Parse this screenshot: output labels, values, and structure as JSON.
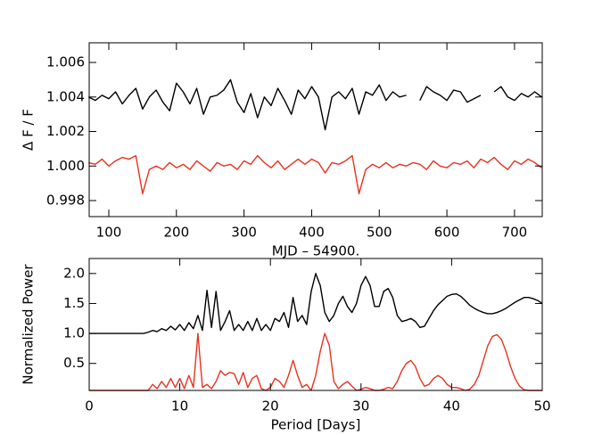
{
  "chart_data": [
    {
      "type": "line",
      "ylabel": "Δ F / F",
      "xlabel": "MJD – 54900.",
      "xlim": [
        71,
        741
      ],
      "ylim": [
        0.99707,
        1.00714
      ],
      "xticks": [
        100,
        200,
        300,
        400,
        500,
        600,
        700
      ],
      "yticks": [
        0.998,
        {
          "value": 1,
          "label": "1.000"
        },
        1.002,
        1.004,
        1.006
      ],
      "x": [
        70,
        80,
        90,
        100,
        110,
        120,
        130,
        140,
        150,
        160,
        170,
        180,
        190,
        200,
        210,
        220,
        230,
        240,
        250,
        260,
        270,
        280,
        290,
        300,
        310,
        320,
        330,
        340,
        350,
        360,
        370,
        380,
        390,
        400,
        410,
        420,
        430,
        440,
        450,
        460,
        470,
        480,
        490,
        500,
        510,
        520,
        530,
        540,
        550,
        560,
        570,
        580,
        590,
        600,
        610,
        620,
        630,
        640,
        650,
        660,
        670,
        680,
        690,
        700,
        710,
        720,
        730,
        740
      ],
      "series": [
        {
          "color": "#000000",
          "values": [
            1.004,
            1.0038,
            1.0041,
            1.0039,
            1.0043,
            1.0036,
            1.0041,
            1.0045,
            1.0033,
            1.004,
            1.0044,
            1.0037,
            1.0032,
            1.0048,
            1.0043,
            1.0036,
            1.0045,
            1.003,
            1.004,
            1.0041,
            1.0044,
            1.005,
            1.0037,
            1.0031,
            1.0042,
            1.0028,
            1.004,
            1.0035,
            1.0045,
            1.0038,
            1.003,
            1.0044,
            1.0039,
            1.0046,
            1.004,
            1.0021,
            1.004,
            1.0043,
            1.0039,
            1.0045,
            1.003,
            1.0043,
            1.0041,
            1.0047,
            1.0038,
            1.0043,
            1.004,
            1.0041,
            null,
            1.0038,
            1.0046,
            1.0043,
            1.0041,
            1.0038,
            1.0044,
            1.0043,
            1.0037,
            1.0039,
            1.0041,
            null,
            1.0043,
            1.0046,
            1.004,
            1.0038,
            1.0042,
            1.004,
            1.0043,
            1.004
          ]
        },
        {
          "color": "#e8321e",
          "values": [
            1.0002,
            1.0001,
            1.0004,
            1.0,
            1.0003,
            1.0005,
            1.0004,
            1.0006,
            0.9984,
            0.9998,
            1.0,
            0.9998,
            1.0002,
            0.9999,
            1.0001,
            0.9998,
            1.0003,
            1.0,
            0.9997,
            1.0002,
            1.0,
            1.0001,
            0.9998,
            1.0003,
            1.0001,
            1.0006,
            1.0002,
            0.9999,
            1.0003,
            0.9998,
            1.0001,
            1.0004,
            1.0001,
            1.0004,
            1.0002,
            0.9996,
            1.0002,
            1.0001,
            1.0003,
            1.0006,
            0.9984,
            0.9998,
            1.0001,
            0.9999,
            1.0002,
            0.9999,
            1.0001,
            1.0,
            1.0002,
            1.0001,
            0.9998,
            1.0003,
            1.0,
            0.9999,
            1.0002,
            1.0001,
            1.0003,
            0.9999,
            1.0004,
            1.0002,
            1.0005,
            1.0001,
            0.9998,
            1.0003,
            1.0001,
            1.0004,
            1.0002,
            0.9999
          ]
        }
      ]
    },
    {
      "type": "line",
      "ylabel": "Normalized Power",
      "xlabel": "Period [Days]",
      "xlim": [
        0,
        50
      ],
      "ylim": [
        0.05,
        2.25
      ],
      "xticks": [
        0,
        10,
        20,
        30,
        40,
        50
      ],
      "yticks": [
        0.5,
        {
          "value": 1,
          "label": "1.0"
        },
        1.5,
        {
          "value": 2,
          "label": "2.0"
        }
      ],
      "x": [
        0,
        0.5,
        1,
        1.5,
        2,
        2.5,
        3,
        3.5,
        4,
        4.5,
        5,
        5.5,
        6,
        6.5,
        7,
        7.5,
        8,
        8.5,
        9,
        9.5,
        10,
        10.5,
        11,
        11.5,
        12,
        12.5,
        13,
        13.5,
        14,
        14.5,
        15,
        15.5,
        16,
        16.5,
        17,
        17.5,
        18,
        18.5,
        19,
        19.5,
        20,
        20.5,
        21,
        21.5,
        22,
        22.5,
        23,
        23.5,
        24,
        24.5,
        25,
        25.5,
        26,
        26.5,
        27,
        27.5,
        28,
        28.5,
        29,
        29.5,
        30,
        30.5,
        31,
        31.5,
        32,
        32.5,
        33,
        33.5,
        34,
        34.5,
        35,
        35.5,
        36,
        36.5,
        37,
        37.5,
        38,
        38.5,
        39,
        39.5,
        40,
        40.5,
        41,
        41.5,
        42,
        42.5,
        43,
        43.5,
        44,
        44.5,
        45,
        45.5,
        46,
        46.5,
        47,
        47.5,
        48,
        48.5,
        49,
        49.5,
        50
      ],
      "series": [
        {
          "color": "#000000",
          "values": [
            1.0,
            1.0,
            1.0,
            1.0,
            1.0,
            1.0,
            1.0,
            1.0,
            1.0,
            1.0,
            1.0,
            1.0,
            1.0,
            1.02,
            1.05,
            1.03,
            1.08,
            1.05,
            1.12,
            1.06,
            1.15,
            1.05,
            1.18,
            1.08,
            1.3,
            1.05,
            1.72,
            1.1,
            1.7,
            1.05,
            1.2,
            1.38,
            1.05,
            1.15,
            1.05,
            1.2,
            1.05,
            1.25,
            1.05,
            1.15,
            1.05,
            1.25,
            1.2,
            1.35,
            1.1,
            1.6,
            1.2,
            1.3,
            1.15,
            1.7,
            2.0,
            1.8,
            1.35,
            1.2,
            1.3,
            1.5,
            1.62,
            1.45,
            1.35,
            1.5,
            1.8,
            1.95,
            1.8,
            1.45,
            1.45,
            1.7,
            1.75,
            1.6,
            1.3,
            1.2,
            1.22,
            1.25,
            1.2,
            1.1,
            1.12,
            1.25,
            1.38,
            1.48,
            1.55,
            1.62,
            1.65,
            1.66,
            1.62,
            1.55,
            1.47,
            1.42,
            1.38,
            1.35,
            1.33,
            1.33,
            1.35,
            1.38,
            1.42,
            1.47,
            1.52,
            1.56,
            1.6,
            1.6,
            1.58,
            1.55,
            1.5
          ]
        },
        {
          "color": "#e8321e",
          "values": [
            0.05,
            0.05,
            0.05,
            0.05,
            0.05,
            0.05,
            0.05,
            0.05,
            0.05,
            0.05,
            0.05,
            0.05,
            0.05,
            0.05,
            0.15,
            0.08,
            0.2,
            0.1,
            0.25,
            0.1,
            0.25,
            0.08,
            0.3,
            0.1,
            1.0,
            0.1,
            0.15,
            0.08,
            0.2,
            0.38,
            0.3,
            0.35,
            0.33,
            0.15,
            0.35,
            0.1,
            0.25,
            0.3,
            0.08,
            0.05,
            0.1,
            0.25,
            0.2,
            0.1,
            0.3,
            0.55,
            0.3,
            0.1,
            0.15,
            0.05,
            0.3,
            0.7,
            1.0,
            0.8,
            0.2,
            0.08,
            0.15,
            0.2,
            0.12,
            0.05,
            0.07,
            0.1,
            0.08,
            0.05,
            0.05,
            0.07,
            0.1,
            0.08,
            0.2,
            0.38,
            0.5,
            0.55,
            0.45,
            0.25,
            0.12,
            0.15,
            0.25,
            0.3,
            0.25,
            0.15,
            0.1,
            0.1,
            0.08,
            0.05,
            0.07,
            0.15,
            0.3,
            0.55,
            0.8,
            0.95,
            0.98,
            0.9,
            0.7,
            0.45,
            0.25,
            0.12,
            0.06,
            0.05,
            0.05,
            0.05,
            0.05
          ]
        }
      ]
    }
  ]
}
